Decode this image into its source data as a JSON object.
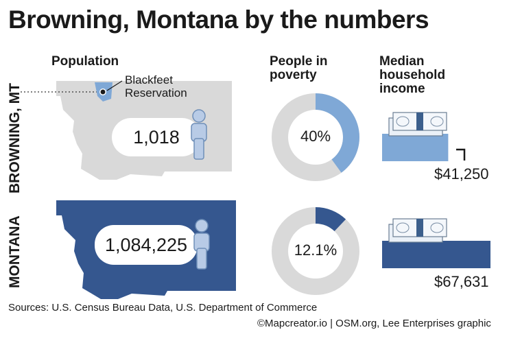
{
  "title": "Browning, Montana by the numbers",
  "headers": {
    "population": "Population",
    "poverty": "People in poverty",
    "income": "Median household income"
  },
  "rows": {
    "browning": "BROWNING, MT",
    "montana": "MONTANA"
  },
  "reservation_label": "Blackfeet Reservation",
  "footer": {
    "sources": "Sources: U.S. Census Bureau Data, U.S. Department of Commerce",
    "credit": "©Mapcreator.io | OSM.org, Lee Enterprises graphic"
  },
  "colors": {
    "light_blue": "#7fa8d6",
    "dark_blue": "#35578f",
    "gray": "#d9d9d9"
  },
  "chart_data": [
    {
      "type": "table",
      "row": "BROWNING, MT",
      "metric": "Population",
      "value": 1018,
      "label": "1,018"
    },
    {
      "type": "table",
      "row": "MONTANA",
      "metric": "Population",
      "value": 1084225,
      "label": "1,084,225"
    },
    {
      "type": "pie",
      "row": "BROWNING, MT",
      "metric": "People in poverty",
      "value": 40,
      "label": "40%"
    },
    {
      "type": "pie",
      "row": "MONTANA",
      "metric": "People in poverty",
      "value": 12.1,
      "label": "12.1%"
    },
    {
      "type": "bar",
      "row": "BROWNING, MT",
      "metric": "Median household income",
      "value": 41250,
      "label": "$41,250"
    },
    {
      "type": "bar",
      "row": "MONTANA",
      "metric": "Median household income",
      "value": 67631,
      "label": "$67,631"
    }
  ]
}
